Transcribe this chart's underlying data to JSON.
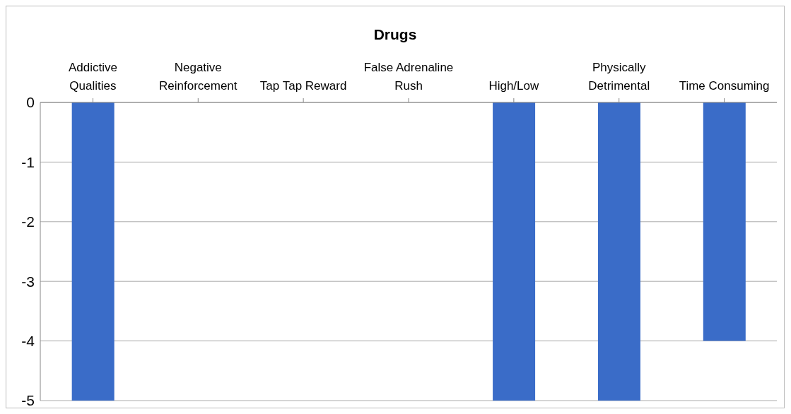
{
  "chart_data": {
    "type": "bar",
    "title": "Drugs",
    "categories": [
      "Addictive Qualities",
      "Negative Reinforcement",
      "Tap Tap Reward",
      "False Adrenaline Rush",
      "High/Low",
      "Physically Detrimental",
      "Time Consuming"
    ],
    "values": [
      -5,
      0,
      0,
      0,
      -5,
      -5,
      -4
    ],
    "color": "#3a6cc8",
    "ylim": [
      -5,
      0
    ],
    "yticks": [
      0,
      -1,
      -2,
      -3,
      -4,
      -5
    ],
    "grid": "y",
    "legend": false
  }
}
